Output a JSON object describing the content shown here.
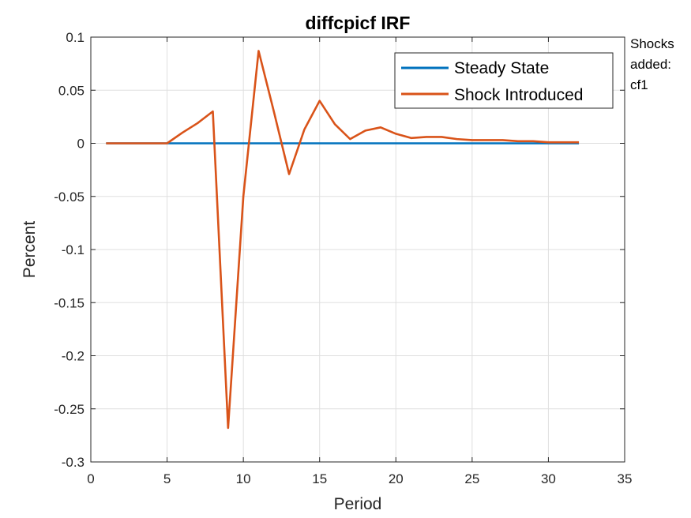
{
  "chart_data": {
    "type": "line",
    "title": "diffcpicf IRF",
    "xlabel": "Period",
    "ylabel": "Percent",
    "xlim": [
      0,
      35
    ],
    "ylim": [
      -0.3,
      0.1
    ],
    "xticks": [
      0,
      5,
      10,
      15,
      20,
      25,
      30,
      35
    ],
    "yticks": [
      -0.3,
      -0.25,
      -0.2,
      -0.15,
      -0.1,
      -0.05,
      0,
      0.05,
      0.1
    ],
    "xtick_labels": [
      "0",
      "5",
      "10",
      "15",
      "20",
      "25",
      "30",
      "35"
    ],
    "ytick_labels": [
      "-0.3",
      "-0.25",
      "-0.2",
      "-0.15",
      "-0.1",
      "-0.05",
      "0",
      "0.05",
      "0.1"
    ],
    "grid": true,
    "legend_position": "top-right",
    "series": [
      {
        "name": "Steady State",
        "color": "#0072BD",
        "x": [
          1,
          32
        ],
        "y": [
          0,
          0
        ]
      },
      {
        "name": "Shock Introduced",
        "color": "#D95319",
        "x": [
          1,
          2,
          3,
          4,
          5,
          6,
          7,
          8,
          9,
          10,
          11,
          12,
          13,
          14,
          15,
          16,
          17,
          18,
          19,
          20,
          21,
          22,
          23,
          24,
          25,
          26,
          27,
          28,
          29,
          30,
          31,
          32
        ],
        "y": [
          0,
          0,
          0,
          0,
          0,
          0.01,
          0.019,
          0.03,
          -0.268,
          -0.05,
          0.087,
          0.03,
          -0.029,
          0.013,
          0.04,
          0.018,
          0.004,
          0.012,
          0.015,
          0.009,
          0.005,
          0.006,
          0.006,
          0.004,
          0.003,
          0.003,
          0.003,
          0.002,
          0.002,
          0.001,
          0.001,
          0.001
        ]
      }
    ]
  },
  "annotation": {
    "lines": [
      "Shocks",
      "added:",
      "cf1"
    ]
  }
}
